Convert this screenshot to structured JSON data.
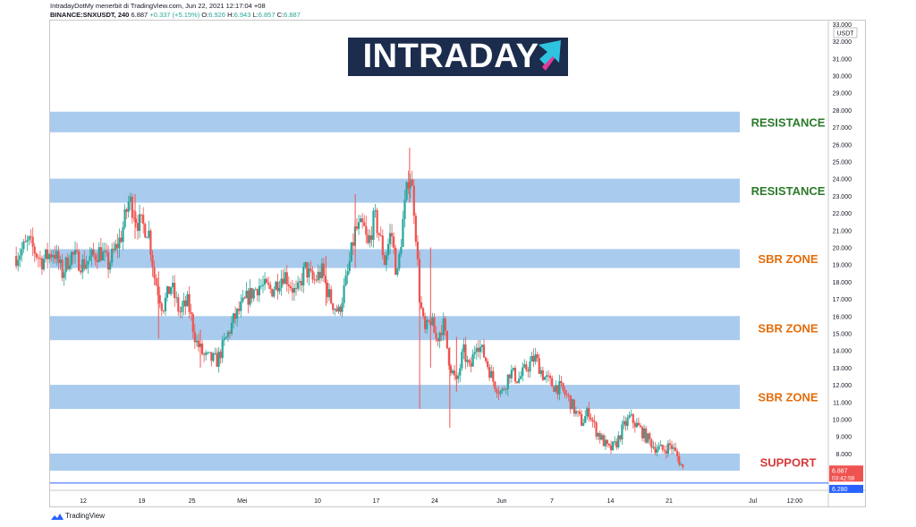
{
  "header": {
    "line1": "IntradayDotMy menerbit di TradingView.com, Jun 22, 2021 12:17:04 +08",
    "symbol": "BINANCE:SNXUSDT, 240",
    "last": "6.887",
    "change": "+0.337 (+5.15%)",
    "o_label": "O:",
    "o_value": "6.926",
    "h_label": "H:",
    "h_value": "6.943",
    "l_label": "L:",
    "l_value": "6.857",
    "c_label": "C:",
    "c_value": "6.887"
  },
  "logo": {
    "text": "INTRADAY"
  },
  "footer": {
    "brand": "TradingView"
  },
  "colors": {
    "up": "#26a69a",
    "down": "#ef5350",
    "zone": "#a9cbed",
    "resistance": "#2b7a2b",
    "sbr": "#e46c0a",
    "support": "#d73a3a",
    "axis_text": "#131722",
    "logo_bg": "#1c2c4c",
    "logo_accent_cyan": "#2ec4e0",
    "logo_accent_pink": "#e0399a"
  },
  "chart_data": {
    "type": "candlestick",
    "currency": "USDT",
    "ylim": [
      6.0,
      33.0
    ],
    "y_ticks": [
      "8.000",
      "9.000",
      "10.000",
      "11.000",
      "12.000",
      "13.000",
      "14.000",
      "15.000",
      "16.000",
      "17.000",
      "18.000",
      "19.000",
      "20.000",
      "21.000",
      "22.000",
      "23.000",
      "24.000",
      "25.000",
      "26.000",
      "27.000",
      "28.000",
      "29.000",
      "30.000",
      "31.000",
      "32.000",
      "33.000"
    ],
    "x_ticks": [
      {
        "label": "12",
        "day": 12
      },
      {
        "label": "19",
        "day": 19
      },
      {
        "label": "25",
        "day": 25
      },
      {
        "label": "Mei",
        "day": 31
      },
      {
        "label": "10",
        "day": 40
      },
      {
        "label": "17",
        "day": 47
      },
      {
        "label": "24",
        "day": 54
      },
      {
        "label": "Jun",
        "day": 62
      },
      {
        "label": "7",
        "day": 68
      },
      {
        "label": "14",
        "day": 75
      },
      {
        "label": "21",
        "day": 82
      },
      {
        "label": "Jul",
        "day": 92
      },
      {
        "label": "12:00",
        "day": 97
      }
    ],
    "zones": [
      {
        "label": "RESISTANCE",
        "low": 26.7,
        "high": 27.9,
        "kind": "resistance"
      },
      {
        "label": "RESISTANCE",
        "low": 22.6,
        "high": 24.0,
        "kind": "resistance"
      },
      {
        "label": "SBR ZONE",
        "low": 18.8,
        "high": 19.9,
        "kind": "sbr"
      },
      {
        "label": "SBR ZONE",
        "low": 14.6,
        "high": 16.0,
        "kind": "sbr"
      },
      {
        "label": "SBR ZONE",
        "low": 10.6,
        "high": 12.0,
        "kind": "sbr"
      },
      {
        "label": "SUPPORT",
        "low": 7.0,
        "high": 8.0,
        "kind": "support"
      }
    ],
    "path": [
      [
        4.0,
        19.5
      ],
      [
        5.5,
        20.3
      ],
      [
        7.0,
        19.2
      ],
      [
        8.5,
        19.8
      ],
      [
        9.5,
        18.5
      ],
      [
        10.5,
        19.6
      ],
      [
        12.0,
        19.0
      ],
      [
        14.0,
        19.8
      ],
      [
        15.0,
        19.0
      ],
      [
        16.5,
        20.6
      ],
      [
        17.5,
        22.8
      ],
      [
        18.5,
        21.5
      ],
      [
        19.8,
        21.0
      ],
      [
        20.5,
        18.3
      ],
      [
        21.5,
        16.5
      ],
      [
        22.5,
        17.8
      ],
      [
        23.5,
        16.2
      ],
      [
        24.5,
        16.8
      ],
      [
        25.5,
        14.5
      ],
      [
        26.5,
        13.6
      ],
      [
        28.0,
        13.4
      ],
      [
        29.0,
        14.6
      ],
      [
        30.0,
        15.8
      ],
      [
        31.5,
        17.0
      ],
      [
        33.0,
        17.8
      ],
      [
        34.5,
        17.5
      ],
      [
        36.0,
        18.5
      ],
      [
        37.5,
        17.2
      ],
      [
        38.5,
        18.8
      ],
      [
        39.5,
        18.0
      ],
      [
        40.5,
        18.6
      ],
      [
        41.5,
        17.0
      ],
      [
        42.5,
        16.2
      ],
      [
        43.5,
        18.2
      ],
      [
        44.5,
        21.0
      ],
      [
        45.5,
        21.2
      ],
      [
        46.0,
        20.0
      ],
      [
        46.8,
        21.8
      ],
      [
        47.5,
        20.5
      ],
      [
        48.0,
        19.2
      ],
      [
        48.8,
        21.0
      ],
      [
        49.5,
        18.2
      ],
      [
        50.2,
        21.5
      ],
      [
        51.0,
        24.6
      ],
      [
        51.6,
        22.0
      ],
      [
        52.2,
        17.0
      ],
      [
        52.8,
        15.0
      ],
      [
        53.5,
        15.8
      ],
      [
        54.2,
        14.6
      ],
      [
        55.0,
        15.6
      ],
      [
        55.8,
        13.2
      ],
      [
        56.6,
        12.0
      ],
      [
        57.4,
        14.0
      ],
      [
        58.2,
        12.8
      ],
      [
        59.0,
        14.6
      ],
      [
        60.0,
        13.6
      ],
      [
        61.0,
        12.2
      ],
      [
        62.0,
        11.5
      ],
      [
        63.0,
        12.8
      ],
      [
        64.0,
        12.3
      ],
      [
        65.0,
        13.0
      ],
      [
        66.0,
        13.6
      ],
      [
        67.0,
        12.5
      ],
      [
        68.0,
        12.0
      ],
      [
        69.0,
        11.8
      ],
      [
        70.0,
        11.2
      ],
      [
        70.8,
        10.4
      ],
      [
        71.6,
        9.8
      ],
      [
        72.4,
        10.5
      ],
      [
        73.2,
        9.4
      ],
      [
        74.0,
        8.8
      ],
      [
        74.8,
        8.2
      ],
      [
        75.6,
        8.5
      ],
      [
        76.5,
        9.5
      ],
      [
        77.3,
        10.1
      ],
      [
        78.2,
        9.6
      ],
      [
        79.2,
        9.0
      ],
      [
        80.2,
        8.4
      ],
      [
        81.2,
        8.2
      ],
      [
        82.2,
        8.5
      ],
      [
        83.0,
        7.8
      ],
      [
        83.7,
        7.05
      ]
    ],
    "wicks": [
      {
        "day": 18.2,
        "low": 20.5,
        "high": 23.1
      },
      {
        "day": 21.0,
        "low": 14.7,
        "high": 18.6
      },
      {
        "day": 26.0,
        "low": 13.0,
        "high": 15.2
      },
      {
        "day": 41.0,
        "low": 16.6,
        "high": 19.5
      },
      {
        "day": 44.5,
        "low": 18.8,
        "high": 23.1
      },
      {
        "day": 51.0,
        "low": 22.6,
        "high": 25.8
      },
      {
        "day": 52.2,
        "low": 10.6,
        "high": 19.0
      },
      {
        "day": 53.5,
        "low": 13.0,
        "high": 20.0
      },
      {
        "day": 55.8,
        "low": 9.5,
        "high": 14.2
      },
      {
        "day": 56.6,
        "low": 11.6,
        "high": 14.8
      }
    ],
    "last_price": {
      "value": 6.887,
      "label": "6.887",
      "countdown": "03:42:58"
    },
    "ref_price": {
      "value": 6.28,
      "label": "6.280"
    }
  }
}
